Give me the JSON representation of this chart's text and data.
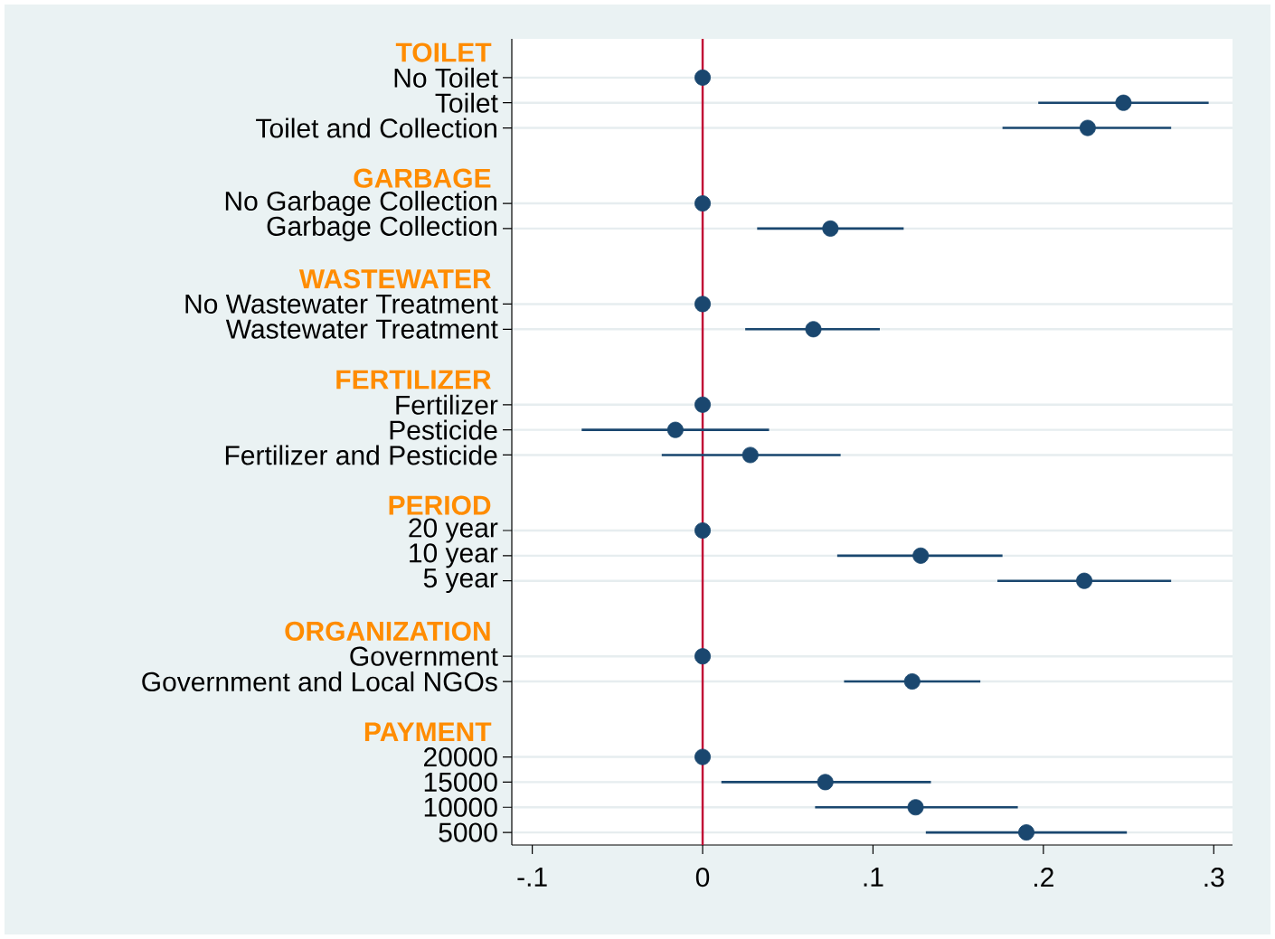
{
  "chart_data": {
    "type": "scatter",
    "orientation": "horizontal",
    "marker": "circle",
    "grid": "y",
    "color": "#1a476f",
    "categories": [
      "TOILET",
      "No Toilet",
      "Toilet",
      "Toilet and Collection",
      null,
      "GARBAGE",
      "No Garbage Collection",
      "Garbage Collection",
      null,
      "WASTEWATER",
      "No Wastewater Treatment",
      "Wastewater Treatment",
      null,
      "FERTILIZER",
      "Fertilizer",
      "Pesticide",
      "Fertilizer and Pesticide",
      null,
      "PERIOD",
      "20 year",
      "10 year",
      "5 year",
      null,
      "ORGANIZATION",
      "Government",
      "Government and Local NGOs",
      null,
      "PAYMENT",
      "20000",
      "15000",
      "10000",
      "5000"
    ],
    "values": [
      null,
      0,
      0.247,
      0.226,
      null,
      null,
      0,
      0.075,
      null,
      null,
      0,
      0.065,
      null,
      null,
      0,
      -0.016,
      0.028,
      null,
      null,
      0,
      0.128,
      0.224,
      null,
      null,
      0,
      0.123,
      null,
      null,
      0,
      0.072,
      0.125,
      0.19
    ],
    "errors": [
      null,
      null,
      [
        0.197,
        0.297
      ],
      [
        0.176,
        0.275
      ],
      null,
      null,
      null,
      [
        0.032,
        0.118
      ],
      null,
      null,
      null,
      [
        0.025,
        0.104
      ],
      null,
      null,
      null,
      [
        -0.071,
        0.039
      ],
      [
        -0.024,
        0.081
      ],
      null,
      null,
      null,
      [
        0.079,
        0.176
      ],
      [
        0.173,
        0.275
      ],
      null,
      null,
      null,
      [
        0.083,
        0.163
      ],
      null,
      null,
      null,
      [
        0.011,
        0.134
      ],
      [
        0.066,
        0.185
      ],
      [
        0.131,
        0.249
      ]
    ],
    "xlim": [
      -0.112,
      0.311
    ],
    "xticks": [
      {
        "value": -0.1,
        "label": "-.1"
      },
      0,
      {
        "value": 0.1,
        "label": ".1"
      },
      {
        "value": 0.2,
        "label": ".2"
      },
      {
        "value": 0.3,
        "label": ".3"
      }
    ],
    "ref_lines": [
      {
        "axis": "x",
        "value": 0,
        "color": "#c10534"
      }
    ]
  }
}
